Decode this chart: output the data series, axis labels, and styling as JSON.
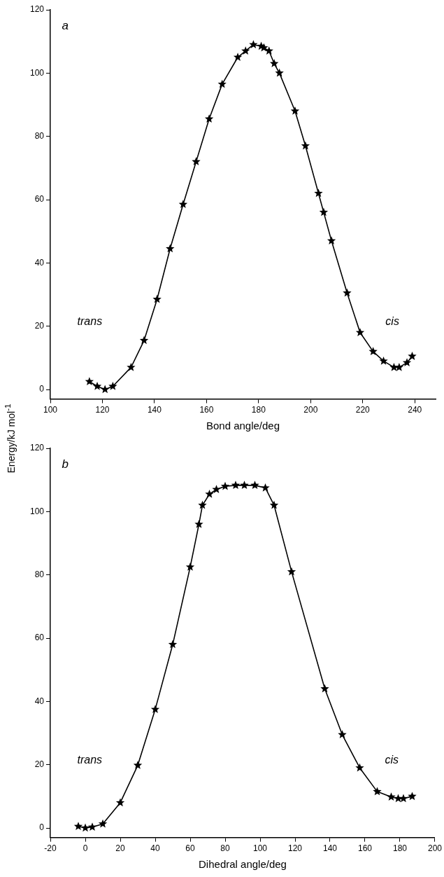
{
  "chart_data": [
    {
      "type": "line",
      "ylabel": "Energy/kJ mol$^{-1}$",
      "xlabel": "Bond angle/deg",
      "marker": "star",
      "line_style": "solid",
      "grid": false,
      "legend": false,
      "xlim": [
        100,
        248
      ],
      "xticks": [
        100,
        120,
        140,
        160,
        180,
        200,
        220,
        240
      ],
      "ylim": [
        -3,
        120
      ],
      "yticks": [
        0,
        20,
        40,
        60,
        80,
        100,
        120
      ],
      "annotations": [
        "a",
        "trans",
        "cis"
      ],
      "series": [
        {
          "color": "#000000",
          "x": [
            115,
            118,
            121,
            124,
            131,
            136,
            141,
            146,
            151,
            156,
            161,
            166,
            172,
            175,
            178,
            181,
            182,
            184,
            186,
            188,
            194,
            198,
            203,
            205,
            208,
            214,
            219,
            224,
            228,
            232,
            234,
            237,
            239
          ],
          "values": [
            2.5,
            1,
            0,
            1,
            7,
            15.5,
            28.5,
            44.5,
            58.5,
            72,
            85.5,
            96.5,
            105,
            107,
            109,
            108.5,
            108,
            107,
            103,
            100,
            88,
            77,
            62,
            56,
            47,
            30.5,
            18,
            12,
            9,
            7,
            7,
            8.5,
            10.5
          ]
        }
      ]
    },
    {
      "type": "line",
      "xlabel": "Dihedral angle/deg",
      "marker": "star",
      "line_style": "solid",
      "grid": false,
      "legend": false,
      "xlim": [
        -20,
        200
      ],
      "xticks": [
        -20,
        0,
        20,
        40,
        60,
        80,
        100,
        120,
        140,
        160,
        180,
        200
      ],
      "ylim": [
        -3,
        120
      ],
      "yticks": [
        0,
        20,
        40,
        60,
        80,
        100,
        120
      ],
      "annotations": [
        "b",
        "trans",
        "cis"
      ],
      "series": [
        {
          "color": "#000000",
          "x": [
            -4,
            0,
            4,
            10,
            20,
            30,
            40,
            50,
            60,
            65,
            67,
            71,
            75,
            80,
            86,
            91,
            97,
            103,
            108,
            118,
            137,
            147,
            157,
            167,
            175,
            179,
            182,
            187
          ],
          "values": [
            0.5,
            0,
            0.3,
            1.3,
            8,
            19.8,
            37.5,
            58,
            82.5,
            96,
            102,
            105.5,
            107,
            108,
            108.3,
            108.3,
            108.3,
            107.5,
            102,
            81,
            44,
            29.5,
            19,
            11.5,
            9.8,
            9.3,
            9.3,
            10
          ]
        }
      ]
    }
  ]
}
